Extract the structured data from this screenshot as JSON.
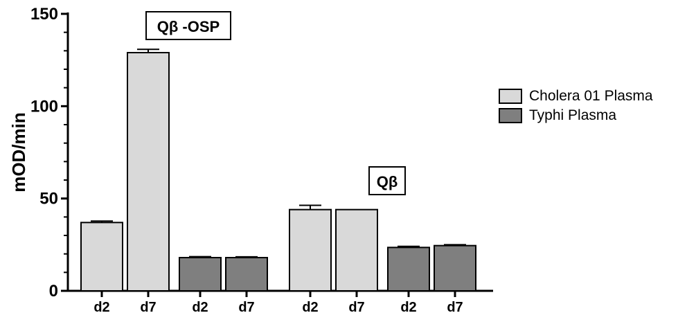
{
  "chart_data": {
    "type": "bar",
    "ylabel": "mOD/min",
    "xlabel": "",
    "ylim": [
      0,
      150
    ],
    "yticks": [
      0,
      50,
      100,
      150
    ],
    "categories": [
      "d2",
      "d7",
      "d2",
      "d7",
      "d2",
      "d7",
      "d2",
      "d7"
    ],
    "series": [
      {
        "name": "Cholera 01 Plasma",
        "color": "#d9d9d9"
      },
      {
        "name": "Typhi Plasma",
        "color": "#7f7f7f"
      }
    ],
    "groups": [
      {
        "label": "Qβ -OSP",
        "bars": [
          {
            "category": "d2",
            "series": 0,
            "value": 37,
            "error": 0.8
          },
          {
            "category": "d7",
            "series": 0,
            "value": 129,
            "error": 1.8
          },
          {
            "category": "d2",
            "series": 1,
            "value": 18,
            "error": 0.5
          },
          {
            "category": "d7",
            "series": 1,
            "value": 18,
            "error": 0.4
          }
        ]
      },
      {
        "label": "Qβ",
        "bars": [
          {
            "category": "d2",
            "series": 0,
            "value": 44,
            "error": 2.3
          },
          {
            "category": "d7",
            "series": 0,
            "value": 44,
            "error": 0
          },
          {
            "category": "d2",
            "series": 1,
            "value": 23.5,
            "error": 0.6
          },
          {
            "category": "d7",
            "series": 1,
            "value": 24.5,
            "error": 0.5
          }
        ]
      }
    ]
  }
}
